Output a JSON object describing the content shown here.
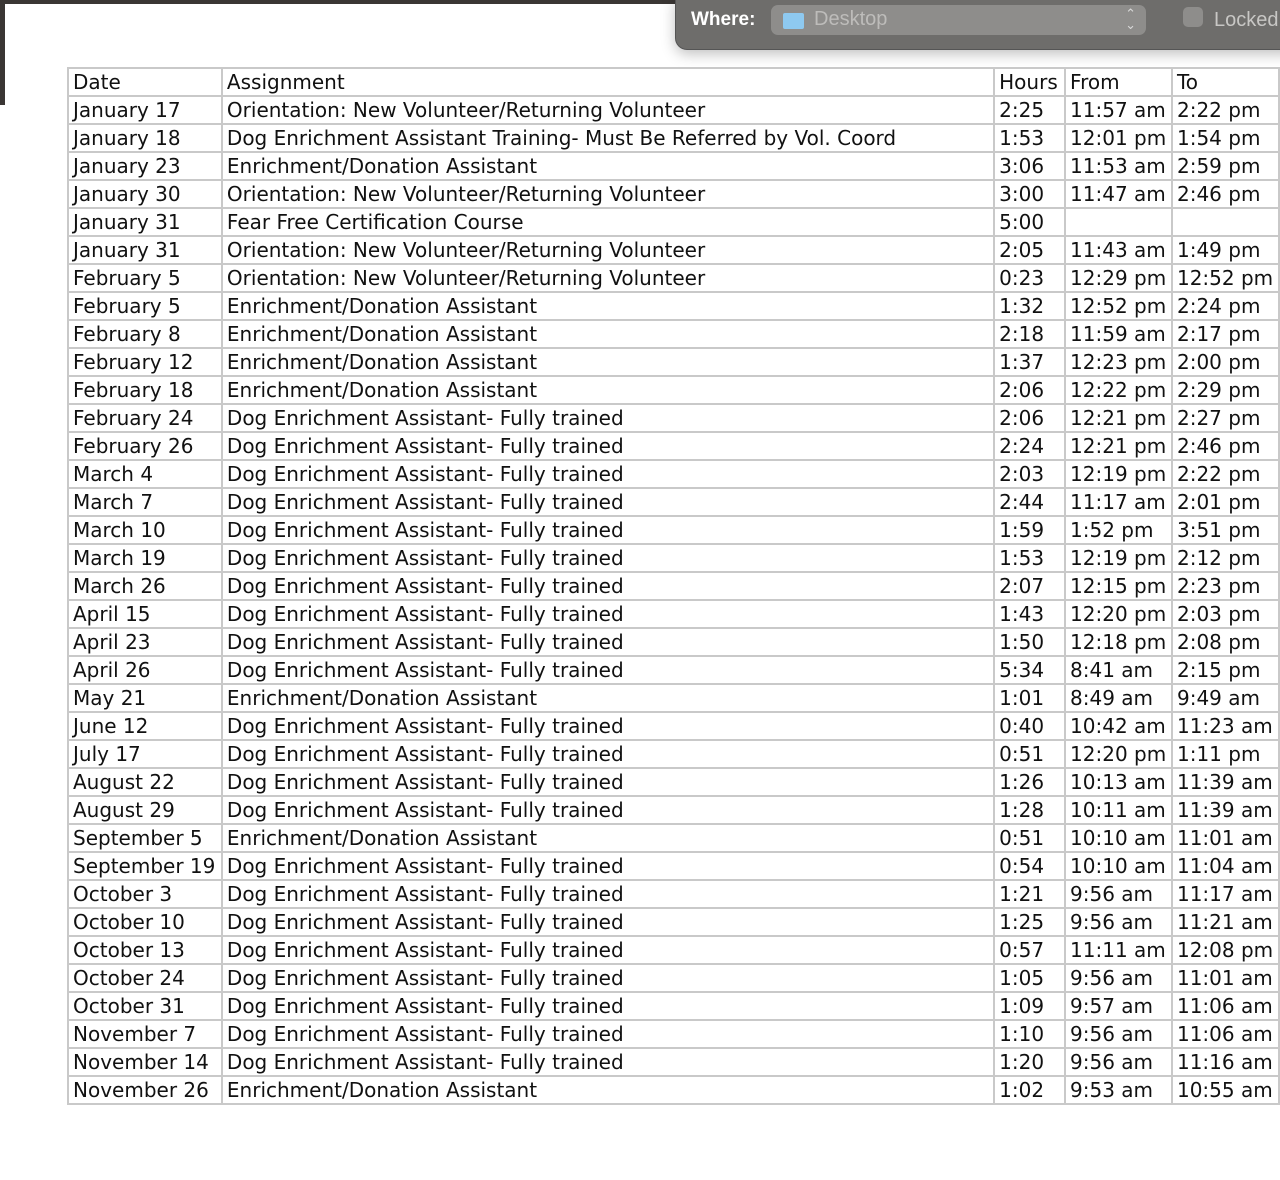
{
  "dialog": {
    "where_label": "Where:",
    "location": "Desktop",
    "locked_label": "Locked",
    "locked": false
  },
  "table": {
    "headers": [
      "Date",
      "Assignment",
      "Hours",
      "From",
      "To"
    ],
    "rows": [
      [
        "January 17",
        "Orientation: New Volunteer/Returning Volunteer",
        "2:25",
        "11:57 am",
        "2:22 pm"
      ],
      [
        "January 18",
        "Dog Enrichment Assistant Training- Must Be Referred by Vol. Coord",
        "1:53",
        "12:01 pm",
        "1:54 pm"
      ],
      [
        "January 23",
        "Enrichment/Donation Assistant",
        "3:06",
        "11:53 am",
        "2:59 pm"
      ],
      [
        "January 30",
        "Orientation: New Volunteer/Returning Volunteer",
        "3:00",
        "11:47 am",
        "2:46 pm"
      ],
      [
        "January 31",
        "Fear Free Certification Course",
        "5:00",
        "",
        ""
      ],
      [
        "January 31",
        "Orientation: New Volunteer/Returning Volunteer",
        "2:05",
        "11:43 am",
        "1:49 pm"
      ],
      [
        "February 5",
        "Orientation: New Volunteer/Returning Volunteer",
        "0:23",
        "12:29 pm",
        "12:52 pm"
      ],
      [
        "February 5",
        "Enrichment/Donation Assistant",
        "1:32",
        "12:52 pm",
        "2:24 pm"
      ],
      [
        "February 8",
        "Enrichment/Donation Assistant",
        "2:18",
        "11:59 am",
        "2:17 pm"
      ],
      [
        "February 12",
        "Enrichment/Donation Assistant",
        "1:37",
        "12:23 pm",
        "2:00 pm"
      ],
      [
        "February 18",
        "Enrichment/Donation Assistant",
        "2:06",
        "12:22 pm",
        "2:29 pm"
      ],
      [
        "February 24",
        "Dog Enrichment Assistant- Fully trained",
        "2:06",
        "12:21 pm",
        "2:27 pm"
      ],
      [
        "February 26",
        "Dog Enrichment Assistant- Fully trained",
        "2:24",
        "12:21 pm",
        "2:46 pm"
      ],
      [
        "March 4",
        "Dog Enrichment Assistant- Fully trained",
        "2:03",
        "12:19 pm",
        "2:22 pm"
      ],
      [
        "March 7",
        "Dog Enrichment Assistant- Fully trained",
        "2:44",
        "11:17 am",
        "2:01 pm"
      ],
      [
        "March 10",
        "Dog Enrichment Assistant- Fully trained",
        "1:59",
        "1:52 pm",
        "3:51 pm"
      ],
      [
        "March 19",
        "Dog Enrichment Assistant- Fully trained",
        "1:53",
        "12:19 pm",
        "2:12 pm"
      ],
      [
        "March 26",
        "Dog Enrichment Assistant- Fully trained",
        "2:07",
        "12:15 pm",
        "2:23 pm"
      ],
      [
        "April 15",
        "Dog Enrichment Assistant- Fully trained",
        "1:43",
        "12:20 pm",
        "2:03 pm"
      ],
      [
        "April 23",
        "Dog Enrichment Assistant- Fully trained",
        "1:50",
        "12:18 pm",
        "2:08 pm"
      ],
      [
        "April 26",
        "Dog Enrichment Assistant- Fully trained",
        "5:34",
        "8:41 am",
        "2:15 pm"
      ],
      [
        "May 21",
        "Enrichment/Donation Assistant",
        "1:01",
        "8:49 am",
        "9:49 am"
      ],
      [
        "June 12",
        "Dog Enrichment Assistant- Fully trained",
        "0:40",
        "10:42 am",
        "11:23 am"
      ],
      [
        "July 17",
        "Dog Enrichment Assistant- Fully trained",
        "0:51",
        "12:20 pm",
        "1:11 pm"
      ],
      [
        "August 22",
        "Dog Enrichment Assistant- Fully trained",
        "1:26",
        "10:13 am",
        "11:39 am"
      ],
      [
        "August 29",
        "Dog Enrichment Assistant- Fully trained",
        "1:28",
        "10:11 am",
        "11:39 am"
      ],
      [
        "September 5",
        "Enrichment/Donation Assistant",
        "0:51",
        "10:10 am",
        "11:01 am"
      ],
      [
        "September 19",
        "Dog Enrichment Assistant- Fully trained",
        "0:54",
        "10:10 am",
        "11:04 am"
      ],
      [
        "October 3",
        "Dog Enrichment Assistant- Fully trained",
        "1:21",
        "9:56 am",
        "11:17 am"
      ],
      [
        "October 10",
        "Dog Enrichment Assistant- Fully trained",
        "1:25",
        "9:56 am",
        "11:21 am"
      ],
      [
        "October 13",
        "Dog Enrichment Assistant- Fully trained",
        "0:57",
        "11:11 am",
        "12:08 pm"
      ],
      [
        "October 24",
        "Dog Enrichment Assistant- Fully trained",
        "1:05",
        "9:56 am",
        "11:01 am"
      ],
      [
        "October 31",
        "Dog Enrichment Assistant- Fully trained",
        "1:09",
        "9:57 am",
        "11:06 am"
      ],
      [
        "November 7",
        "Dog Enrichment Assistant- Fully trained",
        "1:10",
        "9:56 am",
        "11:06 am"
      ],
      [
        "November 14",
        "Dog Enrichment Assistant- Fully trained",
        "1:20",
        "9:56 am",
        "11:16 am"
      ],
      [
        "November 26",
        "Enrichment/Donation Assistant",
        "1:02",
        "9:53 am",
        "10:55 am"
      ]
    ]
  }
}
